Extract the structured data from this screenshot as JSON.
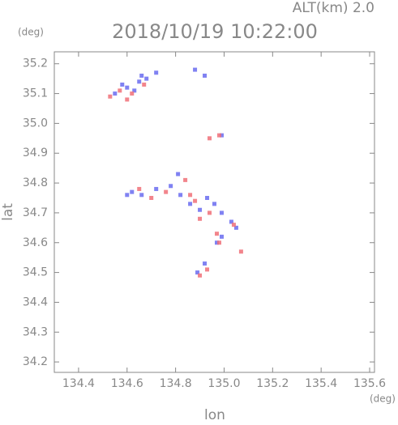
{
  "chart_data": {
    "type": "scatter",
    "title": "2018/10/19 10:22:00",
    "subtitle": "ALT(km) 2.0",
    "y_unit": "(deg)",
    "x_unit": "(deg)",
    "x_label": "lon",
    "y_label": "lat",
    "xlim": [
      134.3,
      135.62
    ],
    "ylim": [
      34.165,
      35.24
    ],
    "xticks": [
      134.4,
      134.6,
      134.8,
      {
        "value": 135,
        "label": "135.0"
      },
      135.2,
      135.4,
      135.6
    ],
    "yticks": [
      34.2,
      34.3,
      34.4,
      34.5,
      34.6,
      34.7,
      34.8,
      34.9,
      {
        "value": 35,
        "label": "35.0"
      },
      35.1,
      35.2
    ],
    "series": [
      {
        "color": "#6a6cf0",
        "x": [
          134.55,
          134.6,
          134.65,
          134.68,
          134.72,
          134.58,
          134.63,
          134.66,
          134.88,
          134.92,
          134.99,
          134.62,
          134.66,
          134.72,
          134.78,
          134.82,
          134.86,
          134.9,
          134.93,
          134.96,
          134.99,
          135.03,
          135.05,
          134.99,
          134.97,
          134.89,
          134.92,
          134.81,
          134.6
        ],
        "y": [
          35.1,
          35.12,
          35.14,
          35.15,
          35.17,
          35.13,
          35.11,
          35.16,
          35.18,
          35.16,
          34.96,
          34.77,
          34.76,
          34.78,
          34.79,
          34.76,
          34.73,
          34.71,
          34.75,
          34.73,
          34.7,
          34.67,
          34.65,
          34.62,
          34.6,
          34.5,
          34.53,
          34.83,
          34.76
        ]
      },
      {
        "color": "#f07078",
        "x": [
          134.53,
          134.57,
          134.62,
          134.67,
          134.6,
          134.94,
          134.98,
          134.65,
          134.7,
          134.76,
          134.84,
          134.86,
          134.9,
          134.94,
          134.97,
          135.04,
          135.07,
          134.9,
          134.93,
          134.98,
          134.88
        ],
        "y": [
          35.09,
          35.11,
          35.1,
          35.13,
          35.08,
          34.95,
          34.96,
          34.78,
          34.75,
          34.77,
          34.81,
          34.76,
          34.68,
          34.7,
          34.63,
          34.66,
          34.57,
          34.49,
          34.51,
          34.6,
          34.74
        ]
      }
    ]
  }
}
